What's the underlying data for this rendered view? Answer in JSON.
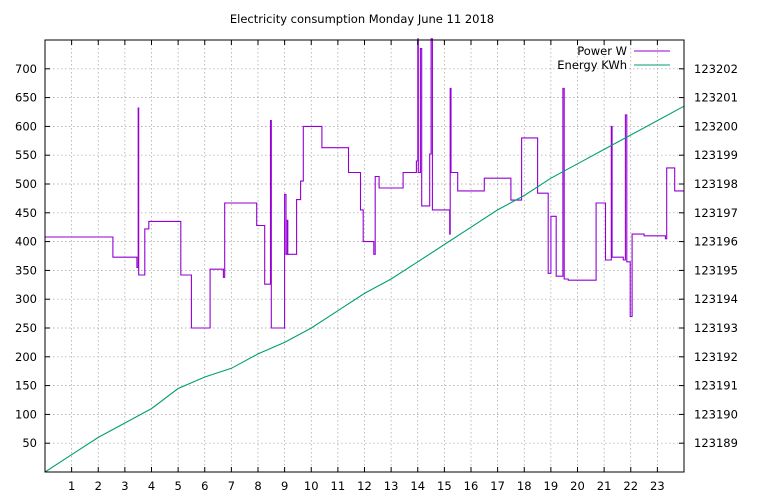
{
  "chart_data": {
    "type": "line",
    "title": "Electricity consumption Monday June 11 2018",
    "xlabel": "",
    "ylabel": "",
    "y2label": "",
    "grid": true,
    "legend_position": "top-right",
    "xlim": [
      0,
      24
    ],
    "ylim": [
      0,
      750
    ],
    "y2lim": [
      123188,
      123203
    ],
    "x_ticks": [
      1,
      2,
      3,
      4,
      5,
      6,
      7,
      8,
      9,
      10,
      11,
      12,
      13,
      14,
      15,
      16,
      17,
      18,
      19,
      20,
      21,
      22,
      23
    ],
    "y_ticks": [
      50,
      100,
      150,
      200,
      250,
      300,
      350,
      400,
      450,
      500,
      550,
      600,
      650,
      700
    ],
    "y2_ticks": [
      123189,
      123190,
      123191,
      123192,
      123193,
      123194,
      123195,
      123196,
      123197,
      123198,
      123199,
      123200,
      123201,
      123202
    ],
    "series": [
      {
        "name": "Power W",
        "axis": "left",
        "color": "#9400d3",
        "step": true,
        "points": [
          [
            0,
            408
          ],
          [
            2.55,
            408
          ],
          [
            2.55,
            373
          ],
          [
            3.4,
            373
          ],
          [
            3.45,
            355
          ],
          [
            3.5,
            632
          ],
          [
            3.52,
            342
          ],
          [
            3.75,
            342
          ],
          [
            3.75,
            422
          ],
          [
            3.9,
            422
          ],
          [
            3.9,
            435
          ],
          [
            5.1,
            435
          ],
          [
            5.1,
            342
          ],
          [
            5.5,
            342
          ],
          [
            5.5,
            250
          ],
          [
            6.2,
            250
          ],
          [
            6.2,
            352
          ],
          [
            6.7,
            352
          ],
          [
            6.7,
            338
          ],
          [
            6.75,
            338
          ],
          [
            6.75,
            467
          ],
          [
            7.95,
            467
          ],
          [
            7.95,
            428
          ],
          [
            8.25,
            428
          ],
          [
            8.25,
            326
          ],
          [
            8.42,
            326
          ],
          [
            8.47,
            610
          ],
          [
            8.5,
            250
          ],
          [
            9,
            250
          ],
          [
            9,
            482
          ],
          [
            9.05,
            378
          ],
          [
            9.1,
            437
          ],
          [
            9.12,
            378
          ],
          [
            9.45,
            378
          ],
          [
            9.45,
            473
          ],
          [
            9.6,
            473
          ],
          [
            9.6,
            505
          ],
          [
            9.7,
            505
          ],
          [
            9.7,
            600
          ],
          [
            10.4,
            600
          ],
          [
            10.4,
            563
          ],
          [
            11.4,
            563
          ],
          [
            11.4,
            520
          ],
          [
            11.85,
            520
          ],
          [
            11.85,
            455
          ],
          [
            11.95,
            455
          ],
          [
            11.95,
            400
          ],
          [
            12.35,
            400
          ],
          [
            12.35,
            378
          ],
          [
            12.4,
            513
          ],
          [
            12.55,
            513
          ],
          [
            12.55,
            493
          ],
          [
            13.45,
            493
          ],
          [
            13.45,
            520
          ],
          [
            13.95,
            520
          ],
          [
            13.95,
            540
          ],
          [
            14.0,
            752
          ],
          [
            14.02,
            520
          ],
          [
            14.1,
            735
          ],
          [
            14.15,
            462
          ],
          [
            14.45,
            462
          ],
          [
            14.45,
            552
          ],
          [
            14.5,
            752
          ],
          [
            14.55,
            455
          ],
          [
            15.2,
            455
          ],
          [
            15.2,
            413
          ],
          [
            15.22,
            666
          ],
          [
            15.25,
            520
          ],
          [
            15.5,
            520
          ],
          [
            15.5,
            488
          ],
          [
            16.5,
            488
          ],
          [
            16.5,
            510
          ],
          [
            17.5,
            510
          ],
          [
            17.5,
            472
          ],
          [
            17.9,
            472
          ],
          [
            17.9,
            580
          ],
          [
            18.5,
            580
          ],
          [
            18.5,
            484
          ],
          [
            18.9,
            484
          ],
          [
            18.9,
            345
          ],
          [
            19.0,
            345
          ],
          [
            19.0,
            444
          ],
          [
            19.2,
            444
          ],
          [
            19.2,
            340
          ],
          [
            19.42,
            340
          ],
          [
            19.45,
            666
          ],
          [
            19.5,
            335
          ],
          [
            19.65,
            335
          ],
          [
            19.65,
            333
          ],
          [
            20.7,
            333
          ],
          [
            20.7,
            467
          ],
          [
            21.05,
            467
          ],
          [
            21.05,
            368
          ],
          [
            21.25,
            368
          ],
          [
            21.27,
            600
          ],
          [
            21.3,
            373
          ],
          [
            21.7,
            373
          ],
          [
            21.72,
            368
          ],
          [
            21.8,
            620
          ],
          [
            21.85,
            365
          ],
          [
            21.95,
            365
          ],
          [
            21.98,
            270
          ],
          [
            22.05,
            413
          ],
          [
            22.5,
            413
          ],
          [
            22.5,
            410
          ],
          [
            23.3,
            410
          ],
          [
            23.3,
            405
          ],
          [
            23.35,
            528
          ],
          [
            23.65,
            528
          ],
          [
            23.65,
            488
          ],
          [
            24,
            488
          ]
        ]
      },
      {
        "name": "Energy KWh",
        "axis": "right",
        "color": "#009e73",
        "step": false,
        "points": [
          [
            0,
            123188.0
          ],
          [
            1,
            123188.6
          ],
          [
            2,
            123189.2
          ],
          [
            3,
            123189.7
          ],
          [
            4,
            123190.2
          ],
          [
            5,
            123190.9
          ],
          [
            6,
            123191.3
          ],
          [
            7,
            123191.6
          ],
          [
            8,
            123192.1
          ],
          [
            9,
            123192.5
          ],
          [
            10,
            123193.0
          ],
          [
            11,
            123193.6
          ],
          [
            12,
            123194.2
          ],
          [
            13,
            123194.7
          ],
          [
            14,
            123195.3
          ],
          [
            15,
            123195.9
          ],
          [
            16,
            123196.5
          ],
          [
            17,
            123197.1
          ],
          [
            18,
            123197.6
          ],
          [
            19,
            123198.2
          ],
          [
            20,
            123198.7
          ],
          [
            21,
            123199.2
          ],
          [
            22,
            123199.7
          ],
          [
            23,
            123200.2
          ],
          [
            24,
            123200.7
          ]
        ]
      }
    ]
  }
}
